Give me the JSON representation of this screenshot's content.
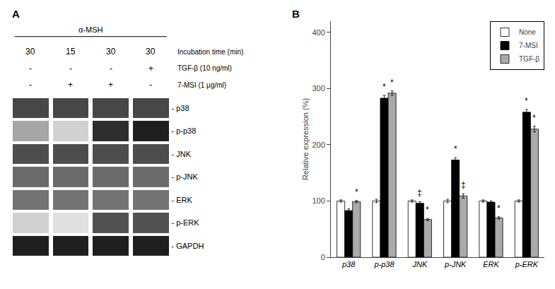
{
  "chart_data": [
    {
      "type": "heatmap",
      "title": "A",
      "categories": [
        "- p38",
        "- p-p38",
        "- JNK",
        "- p-JNK",
        "- ERK",
        "- p-ERK",
        "- GAPDH"
      ],
      "cells": [
        [
          0.72,
          0.72,
          0.72,
          0.72
        ],
        [
          0.35,
          0.18,
          0.82,
          0.88
        ],
        [
          0.7,
          0.7,
          0.7,
          0.7
        ],
        [
          0.58,
          0.58,
          0.58,
          0.58
        ],
        [
          0.55,
          0.55,
          0.55,
          0.55
        ],
        [
          0.18,
          0.12,
          0.68,
          0.68
        ],
        [
          0.88,
          0.88,
          0.88,
          0.88
        ]
      ],
      "cell_range": [
        0,
        1
      ],
      "column_header": {
        "label": "α-MSH",
        "rows": [
          {
            "name": "7-MSI (1 μg/ml)",
            "values": [
              "-",
              "+",
              "+",
              "-"
            ]
          },
          {
            "name": "TGF-β (10 ng/ml)",
            "values": [
              "-",
              "-",
              "-",
              "+"
            ]
          },
          {
            "name": "Incubation time (min)",
            "values": [
              "30",
              "15",
              "30",
              "30"
            ]
          }
        ]
      },
      "tick_labels": "y",
      "grid": false
    },
    {
      "type": "bar",
      "title": "B",
      "categories": [
        "p38",
        "p-p38",
        "JNK",
        "p-JNK",
        "ERK",
        "p-ERK"
      ],
      "series": [
        {
          "name": "None",
          "color": "#ffffff",
          "values": [
            100,
            100,
            100,
            100,
            100,
            100
          ],
          "errors": [
            2,
            3,
            2,
            3,
            2,
            2
          ]
        },
        {
          "name": "7-MSI",
          "color": "#000000",
          "values": [
            83,
            283,
            96,
            173,
            98,
            258
          ],
          "errors": [
            3,
            5,
            3,
            4,
            2,
            5
          ],
          "annotations": [
            null,
            "*",
            "‡",
            "*",
            null,
            "*"
          ]
        },
        {
          "name": "TGF-β",
          "color": "#aaaaaa",
          "values": [
            99,
            292,
            67,
            109,
            70,
            228
          ],
          "errors": [
            2,
            4,
            2,
            4,
            2,
            5
          ],
          "annotations": [
            "*",
            "*",
            "*",
            "‡",
            "*",
            "*"
          ]
        }
      ],
      "ylabel": "Relative expression (%)",
      "ylim": [
        0,
        420
      ],
      "yticks": [
        0,
        100,
        200,
        300,
        400
      ],
      "legend": "upper right",
      "grid": false
    }
  ]
}
